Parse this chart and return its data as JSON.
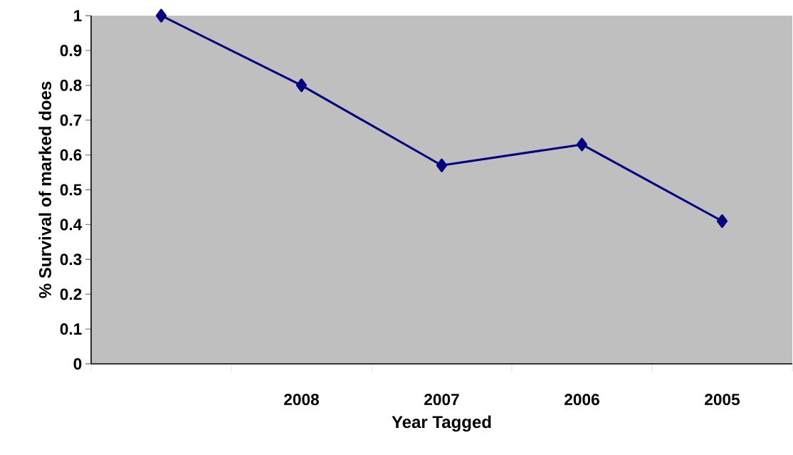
{
  "chart_data": {
    "type": "line",
    "xlabel": "Year Tagged",
    "ylabel": "% Survival of marked does",
    "categories": [
      null,
      "2008",
      "2007",
      "2006",
      "2005"
    ],
    "values": [
      1,
      0.8,
      0.57,
      0.63,
      0.41
    ],
    "color": "#000080",
    "marker": "diamond",
    "line_style": "solid",
    "ylim": [
      0,
      1
    ],
    "yticks": [
      0,
      0.1,
      0.2,
      0.3,
      0.4,
      0.5,
      0.6,
      0.7,
      0.8,
      0.9,
      1
    ]
  }
}
